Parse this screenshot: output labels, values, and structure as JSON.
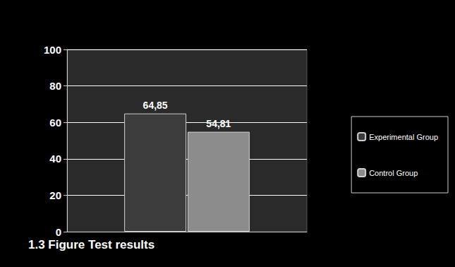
{
  "chart_data": {
    "type": "bar",
    "title": "1.3 Figure Test results",
    "categories": [
      null
    ],
    "series": [
      {
        "name": "Experimental Group",
        "color": "#3c3c3c",
        "values": [
          64.85
        ],
        "value_labels": [
          "64,85"
        ]
      },
      {
        "name": "Control Group",
        "color": "#8c8c8c",
        "values": [
          54.81
        ],
        "value_labels": [
          "54,81"
        ]
      }
    ],
    "ylim": [
      0,
      100
    ],
    "yticks": [
      0,
      20,
      40,
      60,
      80,
      100
    ],
    "grid": true,
    "legend": "right",
    "data_labels": true
  }
}
